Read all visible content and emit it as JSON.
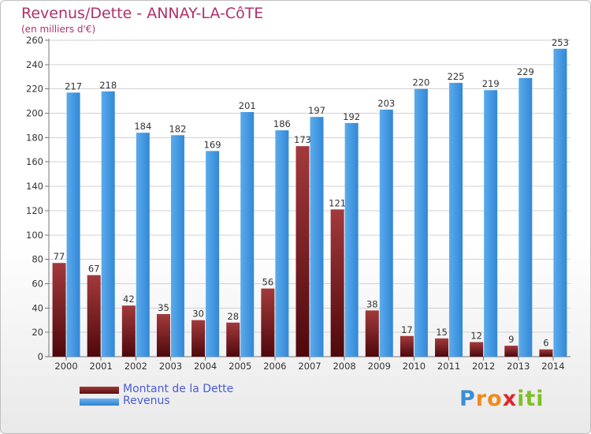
{
  "chart_data": {
    "type": "bar",
    "title": "Revenus/Dette - ANNAY-LA-CôTE",
    "subtitle": "(en milliers d'€)",
    "categories": [
      "2000",
      "2001",
      "2002",
      "2003",
      "2004",
      "2005",
      "2006",
      "2007",
      "2008",
      "2009",
      "2010",
      "2011",
      "2012",
      "2013",
      "2014"
    ],
    "series": [
      {
        "name": "Montant de la Dette",
        "color": "#7b1e22",
        "values": [
          77,
          67,
          42,
          35,
          30,
          28,
          56,
          173,
          121,
          38,
          17,
          15,
          12,
          9,
          6
        ],
        "labels": [
          "77",
          "67",
          "42",
          "35",
          "30",
          "28",
          "56",
          "173",
          "121",
          "38",
          "17",
          "15",
          "12",
          "9",
          "6"
        ]
      },
      {
        "name": "Revenus",
        "color": "#3d92de",
        "values": [
          217,
          218,
          184,
          182,
          169,
          201,
          186,
          197,
          192,
          203,
          220,
          225,
          219,
          229,
          253
        ],
        "labels": [
          "217",
          "218",
          "184",
          "182",
          "169",
          "201",
          "186",
          "197",
          "192",
          "203",
          "220",
          "225",
          "219",
          "229",
          "253"
        ]
      }
    ],
    "ylim": [
      0,
      260
    ],
    "yticks": [
      0,
      20,
      40,
      60,
      80,
      100,
      120,
      140,
      160,
      180,
      200,
      220,
      240,
      260
    ],
    "grid": true,
    "legend_position": "bottom-left"
  },
  "logo": {
    "letters": [
      "P",
      "r",
      "o",
      "x",
      "i",
      "t",
      "i"
    ],
    "colors": [
      "#3a8fd6",
      "#f08a1c",
      "#f08a1c",
      "#e0262b",
      "#7fbf2a",
      "#7fbf2a",
      "#7fbf2a"
    ]
  }
}
